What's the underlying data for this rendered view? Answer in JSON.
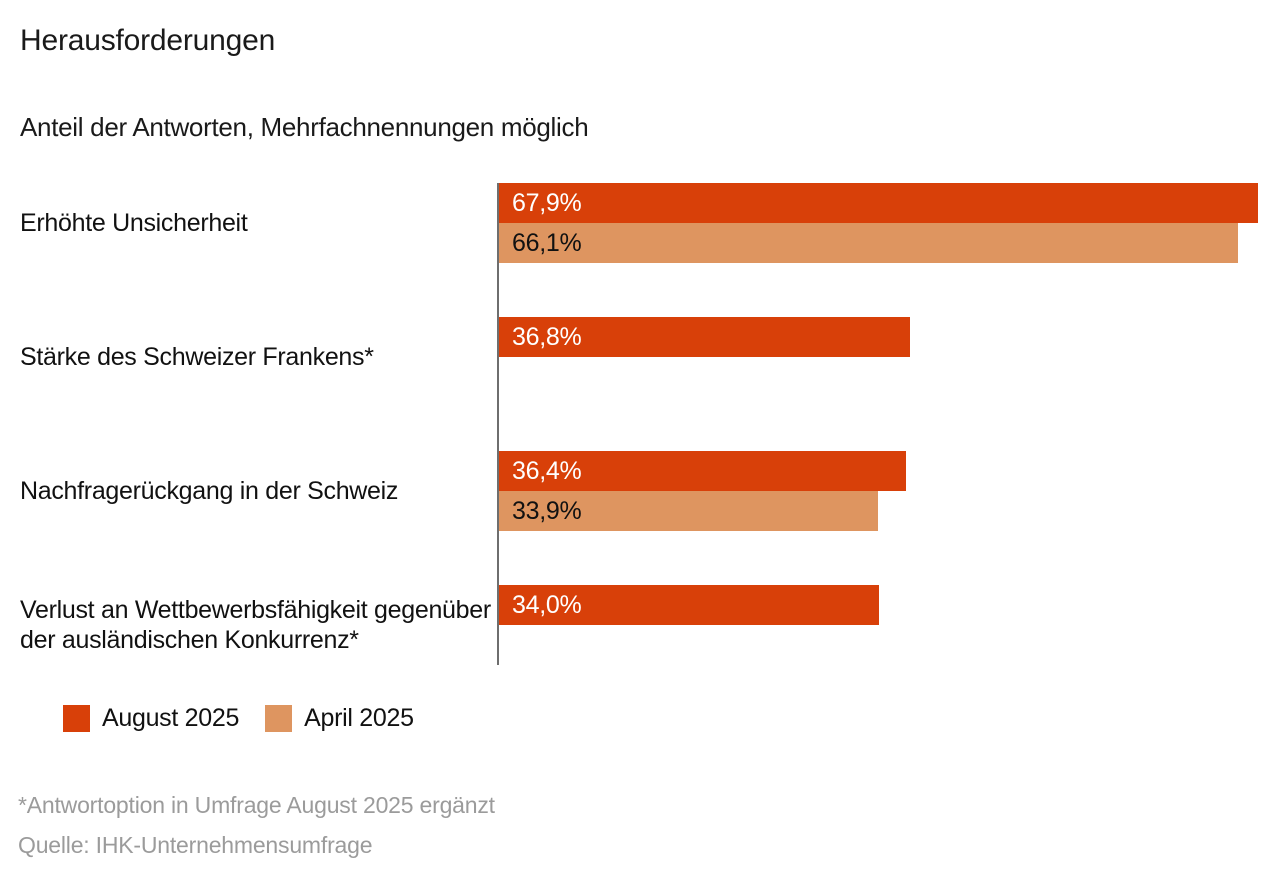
{
  "title": "Herausforderungen",
  "subtitle": "Anteil der Antworten, Mehrfachnennungen möglich",
  "colors": {
    "august": "#d84009",
    "april": "#de9560",
    "axis": "#6e6e6e",
    "value_label_on_dark": "#ffffff",
    "value_label_on_light": "#111111",
    "footnote": "#9b9b9b",
    "text": "#111111"
  },
  "legend": [
    {
      "label": "August 2025",
      "color_key": "august"
    },
    {
      "label": "April 2025",
      "color_key": "april"
    }
  ],
  "footnotes": [
    "*Antwortoption in Umfrage August 2025 ergänzt",
    "Quelle: IHK-Unternehmensumfrage"
  ],
  "chart_data": {
    "type": "bar",
    "orientation": "horizontal",
    "title": "Herausforderungen",
    "subtitle": "Anteil der Antworten, Mehrfachnennungen möglich",
    "categories": [
      "Erhöhte Unsicherheit",
      "Stärke des Schweizer Frankens*",
      "Nachfragerückgang in der Schweiz",
      "Verlust an Wettbewerbsfähigkeit gegenüber der ausländischen Konkurrenz*"
    ],
    "series": [
      {
        "name": "August 2025",
        "values": [
          67.9,
          36.8,
          36.4,
          34.0
        ],
        "labels": [
          "67,9%",
          "36,8%",
          "36,4%",
          "34,0%"
        ]
      },
      {
        "name": "April 2025",
        "values": [
          66.1,
          null,
          33.9,
          null
        ],
        "labels": [
          "66,1%",
          null,
          "33,9%",
          null
        ]
      }
    ],
    "value_unit": "%",
    "xlim": [
      0,
      70
    ],
    "grid": false,
    "legend_position": "bottom-left"
  }
}
